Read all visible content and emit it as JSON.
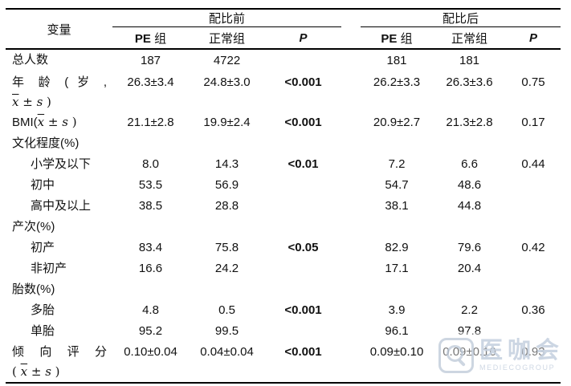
{
  "table": {
    "headers": {
      "variable": "变量",
      "before": "配比前",
      "after": "配比后",
      "pe_prefix": "PE",
      "pe_suffix": " 组",
      "normal": "正常组",
      "p": "P"
    },
    "rows": [
      {
        "indent": false,
        "label": [
          {
            "parts": [
              {
                "t": "总人数",
                "cls": "cjk"
              }
            ]
          }
        ],
        "cells": [
          {
            "t": "187"
          },
          {
            "t": "4722"
          },
          {
            "t": ""
          },
          {
            "t": "181"
          },
          {
            "t": "181"
          },
          {
            "t": ""
          }
        ]
      },
      {
        "indent": false,
        "label": [
          {
            "justify": true,
            "parts": [
              {
                "t": "年 龄 ( 岁 ,",
                "cls": "cjk"
              }
            ]
          },
          {
            "parts": [
              {
                "t": "x",
                "cls": "xbar"
              },
              {
                "t": " ± ",
                "cls": "mo"
              },
              {
                "t": "s",
                "cls": "mi"
              },
              {
                "t": " )",
                "cls": "mo"
              }
            ]
          }
        ],
        "cells": [
          {
            "t": "26.3±3.4"
          },
          {
            "t": "24.8±3.0"
          },
          {
            "t": "<0.001",
            "b": true
          },
          {
            "t": "26.2±3.3"
          },
          {
            "t": "26.3±3.6"
          },
          {
            "t": "0.75"
          }
        ]
      },
      {
        "indent": false,
        "label": [
          {
            "parts": [
              {
                "t": "BMI(",
                "cls": "lat"
              },
              {
                "t": "x",
                "cls": "xbar"
              },
              {
                "t": " ± ",
                "cls": "mo"
              },
              {
                "t": "s",
                "cls": "mi"
              },
              {
                "t": " )",
                "cls": "mo"
              }
            ]
          }
        ],
        "cells": [
          {
            "t": "21.1±2.8"
          },
          {
            "t": "19.9±2.4"
          },
          {
            "t": "<0.001",
            "b": true
          },
          {
            "t": "20.9±2.7"
          },
          {
            "t": "21.3±2.8"
          },
          {
            "t": "0.17"
          }
        ]
      },
      {
        "indent": false,
        "label": [
          {
            "parts": [
              {
                "t": "文化程度",
                "cls": "cjk"
              },
              {
                "t": "(%)",
                "cls": "lat"
              }
            ]
          }
        ],
        "cells": [
          {
            "t": ""
          },
          {
            "t": ""
          },
          {
            "t": ""
          },
          {
            "t": ""
          },
          {
            "t": ""
          },
          {
            "t": ""
          }
        ]
      },
      {
        "indent": true,
        "label": [
          {
            "parts": [
              {
                "t": "小学及以下",
                "cls": "cjk"
              }
            ]
          }
        ],
        "cells": [
          {
            "t": "8.0"
          },
          {
            "t": "14.3"
          },
          {
            "t": "<0.01",
            "b": true
          },
          {
            "t": "7.2"
          },
          {
            "t": "6.6"
          },
          {
            "t": "0.44"
          }
        ]
      },
      {
        "indent": true,
        "label": [
          {
            "parts": [
              {
                "t": "初中",
                "cls": "cjk"
              }
            ]
          }
        ],
        "cells": [
          {
            "t": "53.5"
          },
          {
            "t": "56.9"
          },
          {
            "t": ""
          },
          {
            "t": "54.7"
          },
          {
            "t": "48.6"
          },
          {
            "t": ""
          }
        ]
      },
      {
        "indent": true,
        "label": [
          {
            "parts": [
              {
                "t": "高中及以上",
                "cls": "cjk"
              }
            ]
          }
        ],
        "cells": [
          {
            "t": "38.5"
          },
          {
            "t": "28.8"
          },
          {
            "t": ""
          },
          {
            "t": "38.1"
          },
          {
            "t": "44.8"
          },
          {
            "t": ""
          }
        ]
      },
      {
        "indent": false,
        "label": [
          {
            "parts": [
              {
                "t": "产次",
                "cls": "cjk"
              },
              {
                "t": "(%)",
                "cls": "lat"
              }
            ]
          }
        ],
        "cells": [
          {
            "t": ""
          },
          {
            "t": ""
          },
          {
            "t": ""
          },
          {
            "t": ""
          },
          {
            "t": ""
          },
          {
            "t": ""
          }
        ]
      },
      {
        "indent": true,
        "label": [
          {
            "parts": [
              {
                "t": "初产",
                "cls": "cjk"
              }
            ]
          }
        ],
        "cells": [
          {
            "t": "83.4"
          },
          {
            "t": "75.8"
          },
          {
            "t": "<0.05",
            "b": true
          },
          {
            "t": "82.9"
          },
          {
            "t": "79.6"
          },
          {
            "t": "0.42"
          }
        ]
      },
      {
        "indent": true,
        "label": [
          {
            "parts": [
              {
                "t": "非初产",
                "cls": "cjk"
              }
            ]
          }
        ],
        "cells": [
          {
            "t": "16.6"
          },
          {
            "t": "24.2"
          },
          {
            "t": ""
          },
          {
            "t": "17.1"
          },
          {
            "t": "20.4"
          },
          {
            "t": ""
          }
        ]
      },
      {
        "indent": false,
        "label": [
          {
            "parts": [
              {
                "t": "胎数",
                "cls": "cjk"
              },
              {
                "t": "(%)",
                "cls": "lat"
              }
            ]
          }
        ],
        "cells": [
          {
            "t": ""
          },
          {
            "t": ""
          },
          {
            "t": ""
          },
          {
            "t": ""
          },
          {
            "t": ""
          },
          {
            "t": ""
          }
        ]
      },
      {
        "indent": true,
        "label": [
          {
            "parts": [
              {
                "t": "多胎",
                "cls": "cjk"
              }
            ]
          }
        ],
        "cells": [
          {
            "t": "4.8"
          },
          {
            "t": "0.5"
          },
          {
            "t": "<0.001",
            "b": true
          },
          {
            "t": "3.9"
          },
          {
            "t": "2.2"
          },
          {
            "t": "0.36"
          }
        ]
      },
      {
        "indent": true,
        "label": [
          {
            "parts": [
              {
                "t": "单胎",
                "cls": "cjk"
              }
            ]
          }
        ],
        "cells": [
          {
            "t": "95.2"
          },
          {
            "t": "99.5"
          },
          {
            "t": ""
          },
          {
            "t": "96.1"
          },
          {
            "t": "97.8"
          },
          {
            "t": ""
          }
        ]
      },
      {
        "indent": false,
        "label": [
          {
            "justify": true,
            "parts": [
              {
                "t": "倾 向 评 分",
                "cls": "cjk"
              }
            ]
          },
          {
            "parts": [
              {
                "t": "( ",
                "cls": "mo"
              },
              {
                "t": "x",
                "cls": "xbar"
              },
              {
                "t": " ± ",
                "cls": "mo"
              },
              {
                "t": "s",
                "cls": "mi"
              },
              {
                "t": " )",
                "cls": "mo"
              }
            ]
          }
        ],
        "cells": [
          {
            "t": "0.10±0.04"
          },
          {
            "t": "0.04±0.04"
          },
          {
            "t": "<0.001",
            "b": true
          },
          {
            "t": "0.09±0.10"
          },
          {
            "t": "0.09±0.10"
          },
          {
            "t": "0.93"
          }
        ]
      }
    ]
  },
  "watermark": {
    "brand": "医咖会",
    "subtext": "MEDIECOGROUP",
    "icon": "magnifier-logo-icon"
  }
}
